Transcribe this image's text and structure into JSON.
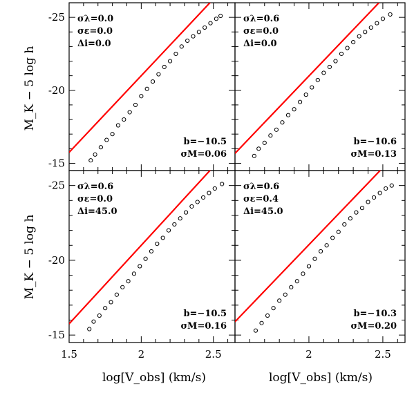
{
  "figure": {
    "ylabel": "M_K − 5 log h",
    "xlabel": "log[V_obs] (km/s)",
    "xlim": [
      1.5,
      2.65
    ],
    "ylim": [
      -14.5,
      -26.0
    ],
    "xticks": [
      1.5,
      2,
      2.5
    ],
    "xtick_labels": [
      "1.5",
      "2",
      "2.5"
    ],
    "yticks": [
      -15,
      -20,
      -25
    ],
    "ytick_labels": [
      "-15",
      "-20",
      "-25"
    ],
    "fit_color": "#ff0000",
    "point_color": "#000000"
  },
  "chart_data": [
    {
      "type": "scatter",
      "params": [
        "σλ=0.0",
        "σε=0.0",
        "Δi=0.0"
      ],
      "fit_label": "b=−10.5",
      "scatter_label": "σM=0.06",
      "fit_line": {
        "slope": -10.5,
        "pivot": [
          2.2,
          -23.1
        ]
      },
      "points": [
        [
          1.65,
          -15.2
        ],
        [
          1.68,
          -15.6
        ],
        [
          1.72,
          -16.1
        ],
        [
          1.76,
          -16.6
        ],
        [
          1.8,
          -17.0
        ],
        [
          1.84,
          -17.6
        ],
        [
          1.88,
          -18.0
        ],
        [
          1.92,
          -18.5
        ],
        [
          1.96,
          -19.0
        ],
        [
          2.0,
          -19.6
        ],
        [
          2.04,
          -20.1
        ],
        [
          2.08,
          -20.6
        ],
        [
          2.12,
          -21.1
        ],
        [
          2.16,
          -21.6
        ],
        [
          2.2,
          -22.0
        ],
        [
          2.24,
          -22.5
        ],
        [
          2.28,
          -23.0
        ],
        [
          2.32,
          -23.4
        ],
        [
          2.36,
          -23.7
        ],
        [
          2.4,
          -24.0
        ],
        [
          2.44,
          -24.3
        ],
        [
          2.48,
          -24.6
        ],
        [
          2.52,
          -24.9
        ],
        [
          2.55,
          -25.1
        ]
      ]
    },
    {
      "type": "scatter",
      "params": [
        "σλ=0.6",
        "σε=0.0",
        "Δi=0.0"
      ],
      "fit_label": "b=−10.6",
      "scatter_label": "σM=0.13",
      "fit_line": {
        "slope": -10.6,
        "pivot": [
          2.2,
          -23.1
        ]
      },
      "points": [
        [
          1.63,
          -15.5
        ],
        [
          1.66,
          -16.0
        ],
        [
          1.7,
          -16.4
        ],
        [
          1.74,
          -16.9
        ],
        [
          1.78,
          -17.3
        ],
        [
          1.82,
          -17.8
        ],
        [
          1.86,
          -18.3
        ],
        [
          1.9,
          -18.7
        ],
        [
          1.94,
          -19.2
        ],
        [
          1.98,
          -19.7
        ],
        [
          2.02,
          -20.2
        ],
        [
          2.06,
          -20.7
        ],
        [
          2.1,
          -21.2
        ],
        [
          2.14,
          -21.6
        ],
        [
          2.18,
          -22.0
        ],
        [
          2.22,
          -22.5
        ],
        [
          2.26,
          -22.9
        ],
        [
          2.3,
          -23.3
        ],
        [
          2.34,
          -23.7
        ],
        [
          2.38,
          -24.0
        ],
        [
          2.42,
          -24.3
        ],
        [
          2.46,
          -24.6
        ],
        [
          2.5,
          -24.9
        ],
        [
          2.55,
          -25.2
        ]
      ]
    },
    {
      "type": "scatter",
      "params": [
        "σλ=0.6",
        "σε=0.0",
        "Δi=45.0"
      ],
      "fit_label": "b=−10.5",
      "scatter_label": "σM=0.16",
      "fit_line": {
        "slope": -10.5,
        "pivot": [
          2.2,
          -23.1
        ]
      },
      "points": [
        [
          1.64,
          -15.4
        ],
        [
          1.67,
          -15.9
        ],
        [
          1.71,
          -16.3
        ],
        [
          1.75,
          -16.8
        ],
        [
          1.79,
          -17.2
        ],
        [
          1.83,
          -17.7
        ],
        [
          1.87,
          -18.2
        ],
        [
          1.91,
          -18.6
        ],
        [
          1.95,
          -19.1
        ],
        [
          1.99,
          -19.6
        ],
        [
          2.03,
          -20.1
        ],
        [
          2.07,
          -20.6
        ],
        [
          2.11,
          -21.1
        ],
        [
          2.15,
          -21.5
        ],
        [
          2.19,
          -22.0
        ],
        [
          2.23,
          -22.4
        ],
        [
          2.27,
          -22.8
        ],
        [
          2.31,
          -23.2
        ],
        [
          2.35,
          -23.6
        ],
        [
          2.39,
          -23.9
        ],
        [
          2.43,
          -24.2
        ],
        [
          2.47,
          -24.5
        ],
        [
          2.51,
          -24.8
        ],
        [
          2.56,
          -25.1
        ]
      ]
    },
    {
      "type": "scatter",
      "params": [
        "σλ=0.6",
        "σε=0.4",
        "Δi=45.0"
      ],
      "fit_label": "b=−10.3",
      "scatter_label": "σM=0.20",
      "fit_line": {
        "slope": -10.3,
        "pivot": [
          2.2,
          -23.1
        ]
      },
      "points": [
        [
          1.64,
          -15.3
        ],
        [
          1.68,
          -15.8
        ],
        [
          1.72,
          -16.3
        ],
        [
          1.76,
          -16.8
        ],
        [
          1.8,
          -17.3
        ],
        [
          1.84,
          -17.7
        ],
        [
          1.88,
          -18.2
        ],
        [
          1.92,
          -18.6
        ],
        [
          1.96,
          -19.1
        ],
        [
          2.0,
          -19.6
        ],
        [
          2.04,
          -20.1
        ],
        [
          2.08,
          -20.6
        ],
        [
          2.12,
          -21.0
        ],
        [
          2.16,
          -21.5
        ],
        [
          2.2,
          -21.9
        ],
        [
          2.24,
          -22.4
        ],
        [
          2.28,
          -22.8
        ],
        [
          2.32,
          -23.2
        ],
        [
          2.36,
          -23.5
        ],
        [
          2.4,
          -23.9
        ],
        [
          2.44,
          -24.2
        ],
        [
          2.48,
          -24.5
        ],
        [
          2.52,
          -24.8
        ],
        [
          2.56,
          -25.0
        ]
      ]
    }
  ]
}
